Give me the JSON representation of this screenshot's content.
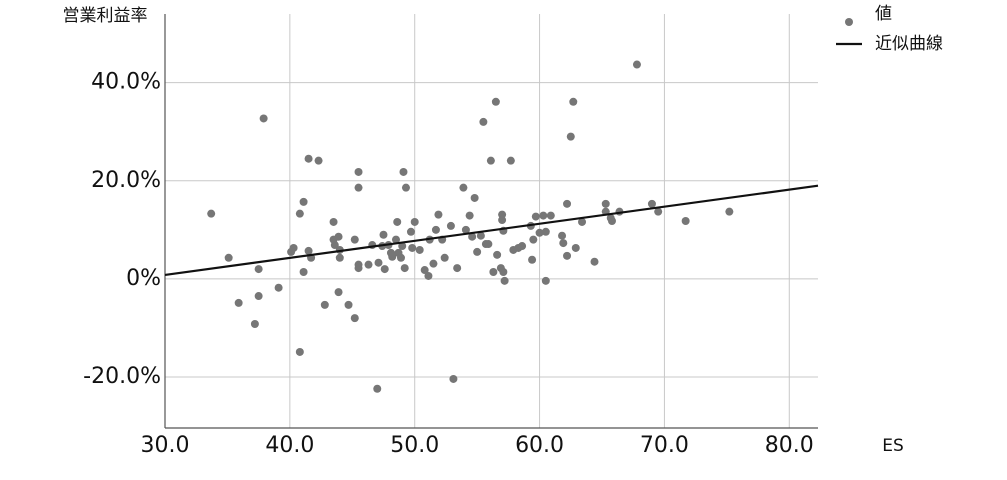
{
  "chart_data": {
    "type": "scatter",
    "y_label": "営業利益率",
    "x_label": "ES",
    "xlim": [
      30,
      82.3
    ],
    "ylim": [
      -30.4,
      54
    ],
    "xticks": [
      {
        "value": 30,
        "label": "30.0"
      },
      {
        "value": 40,
        "label": "40.0"
      },
      {
        "value": 50,
        "label": "50.0"
      },
      {
        "value": 60,
        "label": "60.0"
      },
      {
        "value": 70,
        "label": "70.0"
      },
      {
        "value": 80,
        "label": "80.0"
      }
    ],
    "yticks": [
      {
        "value": -20,
        "label": "-20.0%"
      },
      {
        "value": 0,
        "label": "0%"
      },
      {
        "value": 20,
        "label": "20.0%"
      },
      {
        "value": 40,
        "label": "40.0%"
      }
    ],
    "grid": true,
    "legend": "top-right",
    "series": [
      {
        "name": "値",
        "type": "scatter",
        "color": "#767676",
        "x": [
          33.7,
          35.1,
          35.9,
          37.2,
          37.5,
          37.5,
          37.9,
          39.1,
          40.1,
          40.3,
          40.8,
          41.1,
          41.1,
          40.8,
          41.5,
          41.5,
          41.7,
          42.3,
          42.8,
          43.5,
          43.5,
          43.6,
          43.9,
          43.9,
          44.0,
          44.0,
          44.7,
          45.2,
          45.2,
          45.5,
          45.5,
          45.5,
          45.5,
          46.3,
          46.6,
          47.0,
          47.1,
          47.4,
          47.5,
          47.6,
          47.9,
          48.1,
          48.2,
          48.5,
          48.6,
          48.7,
          48.9,
          49.0,
          49.1,
          49.2,
          49.3,
          49.7,
          49.8,
          50.0,
          50.4,
          50.8,
          51.1,
          51.2,
          51.5,
          51.7,
          51.9,
          52.2,
          52.4,
          52.9,
          53.1,
          53.4,
          53.9,
          54.1,
          54.4,
          54.6,
          54.8,
          55.0,
          55.3,
          55.5,
          55.7,
          55.9,
          56.1,
          56.3,
          56.5,
          56.6,
          56.9,
          57.0,
          57.0,
          57.1,
          57.1,
          57.2,
          57.7,
          57.9,
          58.3,
          58.6,
          59.3,
          59.4,
          59.5,
          59.7,
          60.0,
          60.3,
          60.5,
          60.5,
          60.9,
          61.8,
          61.9,
          62.2,
          62.2,
          62.5,
          62.7,
          62.9,
          63.4,
          64.4,
          65.3,
          65.3,
          65.7,
          65.8,
          66.4,
          67.8,
          69.0,
          69.5,
          71.7,
          75.2
        ],
        "values": [
          13.3,
          4.3,
          -4.9,
          -9.2,
          -3.5,
          2.0,
          32.7,
          -1.8,
          5.5,
          6.3,
          13.3,
          15.7,
          1.4,
          -14.9,
          24.5,
          5.7,
          4.3,
          24.1,
          -5.3,
          11.6,
          8.0,
          6.9,
          8.6,
          -2.7,
          5.9,
          4.3,
          -5.3,
          8.0,
          -8.0,
          21.8,
          18.6,
          2.9,
          2.2,
          2.9,
          6.9,
          -22.4,
          3.3,
          6.7,
          9.0,
          2.0,
          6.9,
          5.3,
          4.5,
          8.0,
          11.6,
          5.3,
          4.3,
          6.7,
          21.8,
          2.2,
          18.6,
          9.6,
          6.3,
          11.6,
          5.9,
          1.8,
          0.6,
          8.0,
          3.1,
          10.0,
          13.1,
          8.0,
          4.3,
          10.8,
          -20.4,
          2.2,
          18.6,
          10.0,
          12.9,
          8.6,
          16.5,
          5.5,
          8.8,
          32.0,
          7.1,
          7.1,
          24.1,
          1.4,
          36.1,
          4.9,
          2.2,
          13.1,
          12.0,
          1.4,
          9.8,
          -0.4,
          24.1,
          5.9,
          6.3,
          6.7,
          10.8,
          3.9,
          8.0,
          12.7,
          9.4,
          12.9,
          9.6,
          -0.4,
          12.9,
          8.8,
          7.3,
          15.3,
          4.7,
          29.0,
          36.1,
          6.3,
          11.6,
          3.5,
          15.3,
          13.7,
          12.4,
          11.8,
          13.7,
          43.7,
          15.3,
          13.7,
          11.8,
          13.7
        ]
      },
      {
        "name": "近似曲線",
        "type": "line",
        "color": "#111111",
        "x": [
          30,
          82.3
        ],
        "values": [
          0.8,
          19.0
        ]
      }
    ]
  }
}
